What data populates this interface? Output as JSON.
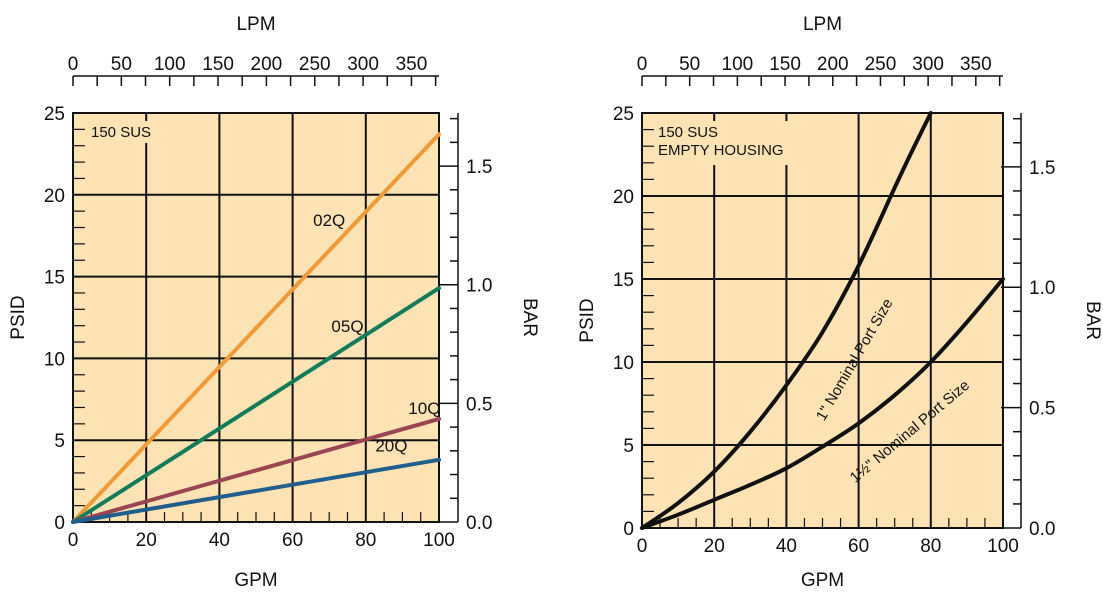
{
  "colors": {
    "plot_background": "#fde3b4",
    "grid": "#111111",
    "series_02q": "#f39a36",
    "series_05q": "#0f7d5a",
    "series_10q": "#9b4452",
    "series_20q": "#1f5f8e",
    "series_port": "#111111"
  },
  "chart_data": [
    {
      "type": "line",
      "annotation": "150 SUS",
      "xlabel": "GPM",
      "ylabel": "PSID",
      "top_axis_label": "LPM",
      "right_axis_label": "BAR",
      "xlim": [
        0,
        100
      ],
      "ylim": [
        0,
        25
      ],
      "x_ticks": [
        "0",
        "20",
        "40",
        "60",
        "80",
        "100"
      ],
      "y_ticks": [
        "0",
        "5",
        "10",
        "15",
        "20",
        "25"
      ],
      "top_ticks": [
        "0",
        "50",
        "100",
        "150",
        "200",
        "250",
        "300",
        "350"
      ],
      "right_ticks": [
        "0.0",
        "0.5",
        "1.0",
        "1.5"
      ],
      "grid": true,
      "series": [
        {
          "name": "02Q",
          "color": "series_02q",
          "x": [
            0,
            100
          ],
          "y": [
            0,
            23.7
          ]
        },
        {
          "name": "05Q",
          "color": "series_05q",
          "x": [
            0,
            100
          ],
          "y": [
            0,
            14.3
          ]
        },
        {
          "name": "10Q",
          "color": "series_10q",
          "x": [
            0,
            100
          ],
          "y": [
            0,
            6.3
          ]
        },
        {
          "name": "20Q",
          "color": "series_20q",
          "x": [
            0,
            100
          ],
          "y": [
            0,
            3.8
          ]
        }
      ]
    },
    {
      "type": "line",
      "annotation_lines": [
        "150 SUS",
        "EMPTY HOUSING"
      ],
      "xlabel": "GPM",
      "ylabel": "PSID",
      "top_axis_label": "LPM",
      "right_axis_label": "BAR",
      "xlim": [
        0,
        100
      ],
      "ylim": [
        0,
        25
      ],
      "x_ticks": [
        "0",
        "20",
        "40",
        "60",
        "80",
        "100"
      ],
      "y_ticks": [
        "0",
        "5",
        "10",
        "15",
        "20",
        "25"
      ],
      "top_ticks": [
        "0",
        "50",
        "100",
        "150",
        "200",
        "250",
        "300",
        "350"
      ],
      "right_ticks": [
        "0.0",
        "0.5",
        "1.0",
        "1.5"
      ],
      "grid": true,
      "series": [
        {
          "name": "1\" Nominal Port Size",
          "color": "series_port",
          "x": [
            0,
            10,
            20,
            30,
            40,
            50,
            60,
            70,
            75,
            80
          ],
          "y": [
            0,
            1.5,
            3.4,
            5.8,
            8.6,
            11.8,
            15.8,
            20.5,
            22.8,
            25
          ]
        },
        {
          "name": "1½\" Nominal Port Size",
          "color": "series_port",
          "x": [
            0,
            10,
            20,
            30,
            40,
            50,
            60,
            70,
            80,
            90,
            100
          ],
          "y": [
            0,
            0.8,
            1.7,
            2.6,
            3.6,
            4.9,
            6.3,
            8.0,
            10.0,
            12.4,
            15.0
          ]
        }
      ]
    }
  ]
}
